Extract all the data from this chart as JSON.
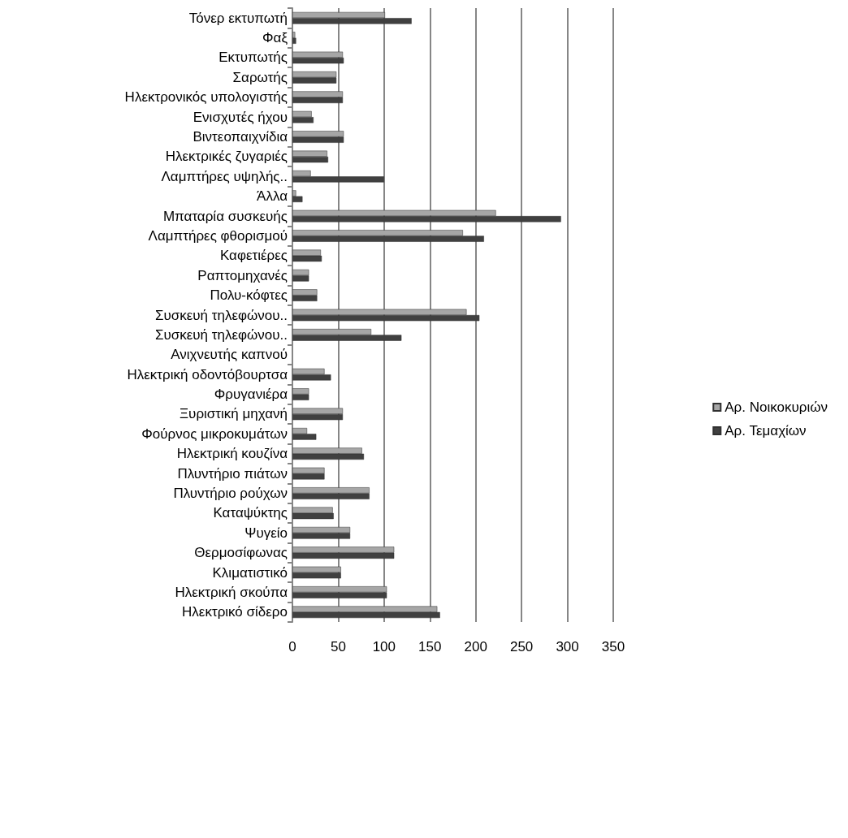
{
  "chart_data": {
    "type": "bar",
    "orientation": "horizontal",
    "categories": [
      "Τόνερ εκτυπωτή",
      "Φαξ",
      "Εκτυπωτής",
      "Σαρωτής",
      "Ηλεκτρονικός υπολογιστής",
      "Ενισχυτές ήχου",
      "Βιντεοπαιχνίδια",
      "Ηλεκτρικές ζυγαριές",
      "Λαμπτήρες υψηλής..",
      "Άλλα",
      "Μπαταρία συσκευής",
      "Λαμπτήρες φθορισμού",
      "Καφετιέρες",
      "Ραπτομηχανές",
      "Πολυ-κόφτες",
      "Συσκευή τηλεφώνου..",
      "Συσκευή τηλεφώνου..",
      "Ανιχνευτής καπνού",
      "Ηλεκτρική οδοντόβουρτσα",
      "Φρυγανιέρα",
      "Ξυριστική μηχανή",
      "Φούρνος μικροκυμάτων",
      "Ηλεκτρική κουζίνα",
      "Πλυντήριο πιάτων",
      "Πλυντήριο ρούχων",
      "Καταψύκτης",
      "Ψυγείο",
      "Θερμοσίφωνας",
      "Κλιματιστικό",
      "Ηλεκτρική σκούπα",
      "Ηλεκτρικό σίδερο"
    ],
    "series": [
      {
        "name": "Αρ. Νοικοκυριών",
        "color": "#a6a6a6",
        "values": [
          101,
          3,
          55,
          48,
          55,
          21,
          56,
          38,
          20,
          4,
          222,
          186,
          31,
          18,
          27,
          190,
          86,
          null,
          35,
          18,
          55,
          16,
          76,
          35,
          84,
          44,
          63,
          111,
          53,
          103,
          158
        ]
      },
      {
        "name": "Αρ. Τεμαχίων",
        "color": "#404040",
        "values": [
          130,
          4,
          56,
          48,
          55,
          23,
          56,
          39,
          100,
          11,
          293,
          209,
          32,
          18,
          27,
          204,
          119,
          null,
          42,
          18,
          55,
          26,
          78,
          35,
          84,
          45,
          63,
          111,
          53,
          103,
          161
        ]
      }
    ],
    "xlim": [
      0,
      350
    ],
    "xticks": [
      0,
      50,
      100,
      150,
      200,
      250,
      300,
      350
    ],
    "grid": "x",
    "legend": "right"
  }
}
